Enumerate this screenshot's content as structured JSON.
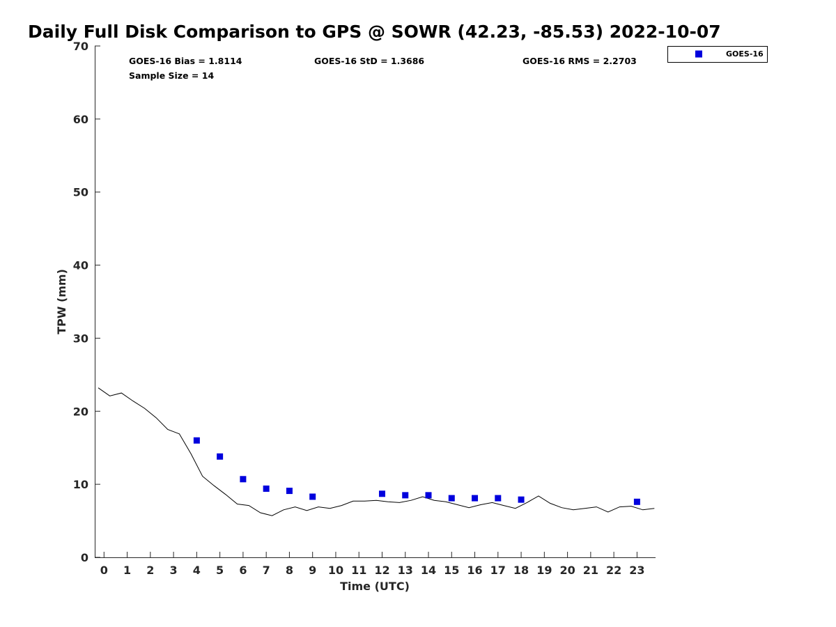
{
  "chart_data": {
    "type": "scatter",
    "title": "Daily Full Disk Comparison to GPS @ SOWR (42.23, -85.53) 2022-10-07",
    "xlabel": "Time (UTC)",
    "ylabel": "TPW (mm)",
    "xlim": [
      -0.4,
      23.8
    ],
    "ylim": [
      0,
      70
    ],
    "x_ticks": [
      0,
      1,
      2,
      3,
      4,
      5,
      6,
      7,
      8,
      9,
      10,
      11,
      12,
      13,
      14,
      15,
      16,
      17,
      18,
      19,
      20,
      21,
      22,
      23
    ],
    "x_tick_labels": [
      "0",
      "1",
      "2",
      "3",
      "4",
      "5",
      "6",
      "7",
      "8",
      "9",
      "10",
      "11",
      "12",
      "13",
      "14",
      "15",
      "16",
      "17",
      "18",
      "19",
      "20",
      "21",
      "22",
      "23"
    ],
    "y_ticks": [
      0,
      10,
      20,
      30,
      40,
      50,
      60,
      70
    ],
    "y_tick_labels": [
      "0",
      "10",
      "20",
      "30",
      "40",
      "50",
      "60",
      "70"
    ],
    "grid": false,
    "legend_position": "top-right",
    "stats": {
      "bias": "GOES-16 Bias = 1.8114",
      "std": "GOES-16 StD = 1.3686",
      "rms": "GOES-16 RMS = 2.2703",
      "sample_size": "Sample Size = 14"
    },
    "series": [
      {
        "kind": "line",
        "color": "#000000",
        "x": [
          -0.25,
          0.25,
          0.75,
          1.25,
          1.75,
          2.25,
          2.75,
          3.25,
          3.75,
          4.25,
          4.75,
          5.25,
          5.75,
          6.25,
          6.75,
          7.25,
          7.75,
          8.25,
          8.75,
          9.25,
          9.75,
          10.25,
          10.75,
          11.25,
          11.75,
          12.25,
          12.75,
          13.25,
          13.75,
          14.25,
          14.75,
          15.25,
          15.75,
          16.25,
          16.75,
          17.25,
          17.75,
          18.25,
          18.75,
          19.25,
          19.75,
          20.25,
          20.75,
          21.25,
          21.75,
          22.25,
          22.75,
          23.25,
          23.75
        ],
        "values": [
          23.2,
          22.1,
          22.5,
          21.4,
          20.4,
          19.1,
          17.5,
          16.9,
          14.2,
          11.1,
          9.8,
          8.6,
          7.3,
          7.1,
          6.1,
          5.7,
          6.5,
          6.9,
          6.4,
          6.9,
          6.7,
          7.1,
          7.7,
          7.7,
          7.8,
          7.6,
          7.5,
          7.8,
          8.3,
          7.8,
          7.6,
          7.2,
          6.8,
          7.2,
          7.5,
          7.1,
          6.7,
          7.5,
          8.4,
          7.4,
          6.8,
          6.5,
          6.7,
          6.9,
          6.2,
          6.9,
          7.0,
          6.5,
          6.7
        ]
      },
      {
        "kind": "points",
        "name": "GOES-16",
        "color": "#0000dd",
        "x": [
          4,
          5,
          6,
          7,
          8,
          9,
          12,
          13,
          14,
          15,
          16,
          17,
          18,
          23
        ],
        "values": [
          16.0,
          13.8,
          10.7,
          9.4,
          9.1,
          8.3,
          8.7,
          8.5,
          8.5,
          8.1,
          8.1,
          8.1,
          7.9,
          7.6
        ]
      }
    ]
  }
}
